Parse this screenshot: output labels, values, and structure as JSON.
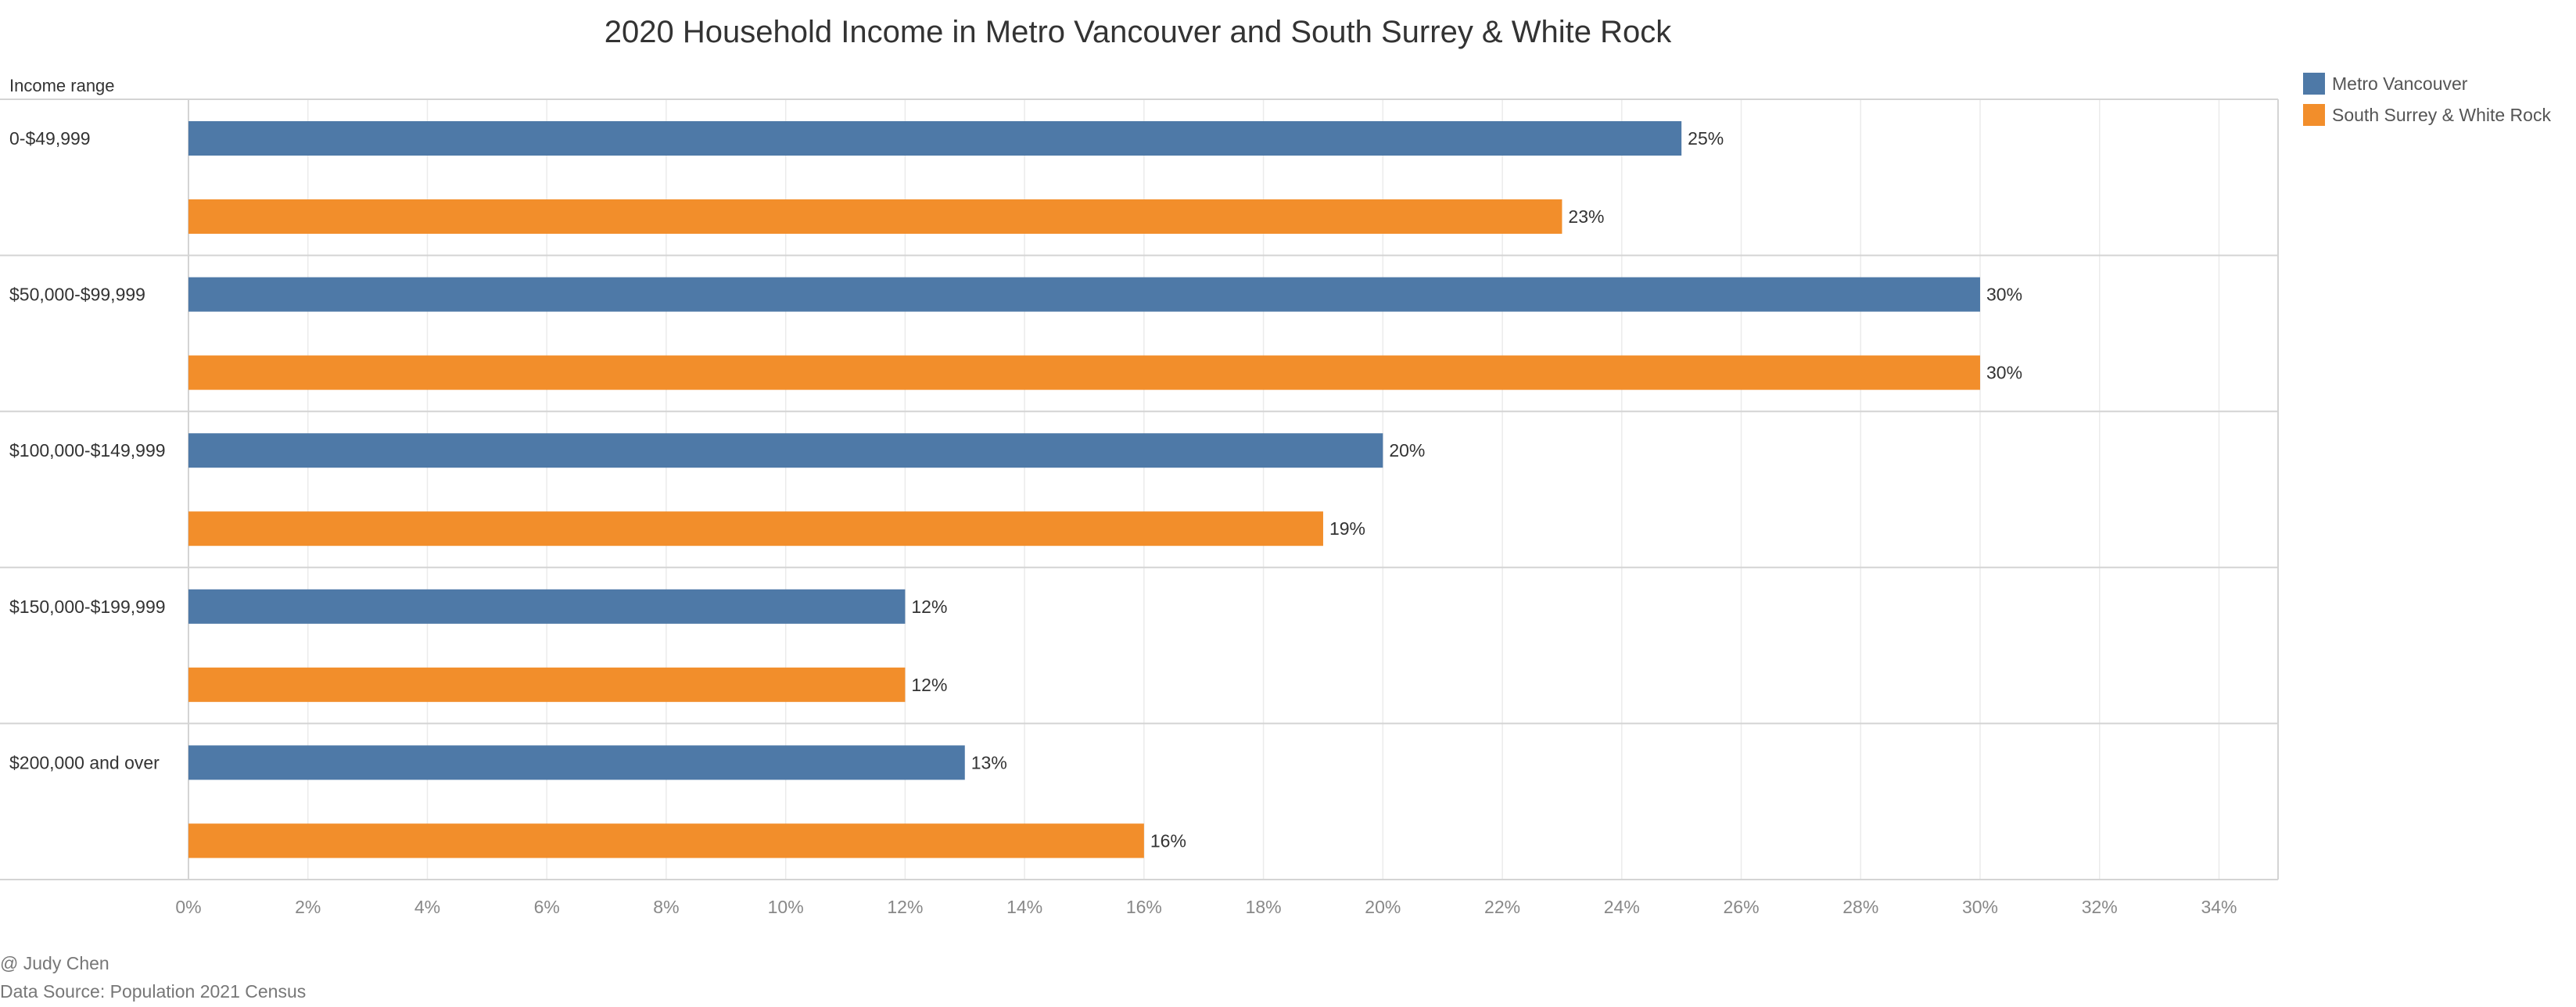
{
  "title": "2020 Household Income in Metro Vancouver and South Surrey  & White Rock",
  "row_header": "Income range",
  "author": "@ Judy Chen",
  "source": "Data Source: Population 2021 Census",
  "legend": [
    {
      "name": "Metro Vancouver",
      "color": "#4E79A7"
    },
    {
      "name": "South Surrey & White Rock",
      "color": "#F28E2B"
    }
  ],
  "chart_data": {
    "type": "bar",
    "orientation": "horizontal",
    "title": "2020 Household Income in Metro Vancouver and South Surrey  & White Rock",
    "ylabel": "Income range",
    "categories": [
      "0-$49,999",
      "$50,000-$99,999",
      "$100,000-$149,999",
      "$150,000-$199,999",
      "$200,000 and over"
    ],
    "series": [
      {
        "name": "Metro Vancouver",
        "color": "#4E79A7",
        "values": [
          25,
          30,
          20,
          12,
          13
        ],
        "labels": [
          "25%",
          "30%",
          "20%",
          "12%",
          "13%"
        ]
      },
      {
        "name": "South Surrey & White Rock",
        "color": "#F28E2B",
        "values": [
          23,
          30,
          19,
          12,
          16
        ],
        "labels": [
          "23%",
          "30%",
          "19%",
          "12%",
          "16%"
        ]
      }
    ],
    "xlim": [
      0,
      35
    ],
    "xticks": [
      0,
      2,
      4,
      6,
      8,
      10,
      12,
      14,
      16,
      18,
      20,
      22,
      24,
      26,
      28,
      30,
      32,
      34
    ],
    "xtick_labels": [
      "0%",
      "2%",
      "4%",
      "6%",
      "8%",
      "10%",
      "12%",
      "14%",
      "16%",
      "18%",
      "20%",
      "22%",
      "24%",
      "26%",
      "28%",
      "30%",
      "32%",
      "34%"
    ],
    "grid": true,
    "legend_position": "top-right"
  }
}
